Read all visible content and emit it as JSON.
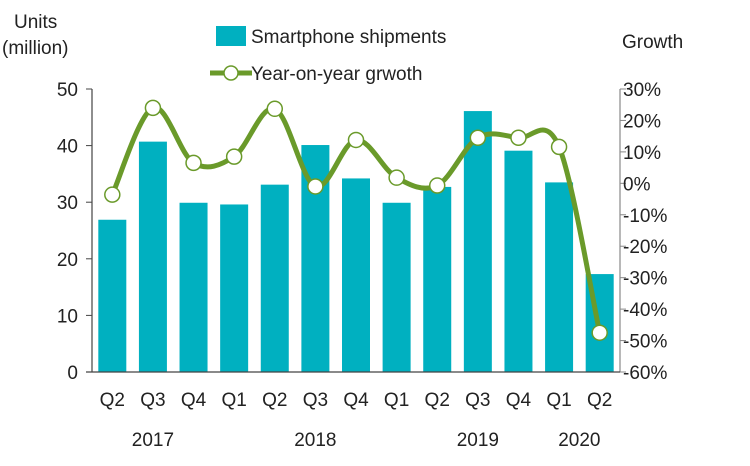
{
  "chart_data": {
    "type": "bar+line",
    "left_axis_label": [
      "Units",
      "(million)"
    ],
    "right_axis_label": "Growth",
    "categories": [
      "Q2",
      "Q3",
      "Q4",
      "Q1",
      "Q2",
      "Q3",
      "Q4",
      "Q1",
      "Q2",
      "Q3",
      "Q4",
      "Q1",
      "Q2"
    ],
    "years": [
      {
        "label": "2017",
        "index": 1
      },
      {
        "label": "2018",
        "index": 5
      },
      {
        "label": "2019",
        "index": 9
      },
      {
        "label": "2020",
        "index": 11.5
      }
    ],
    "left_ylim": [
      0,
      50
    ],
    "left_ticks": [
      "0",
      "10",
      "20",
      "30",
      "40",
      "50"
    ],
    "right_ylim": [
      -60,
      30
    ],
    "right_ticks": [
      "-60%",
      "-50%",
      "-40%",
      "-30%",
      "-20%",
      "-10%",
      "0%",
      "10%",
      "20%",
      "30%"
    ],
    "grid": false,
    "legend_placement": "top",
    "series": [
      {
        "name": "Smartphone shipments",
        "type": "bar",
        "axis": "left",
        "color": "#00b0c0",
        "values": [
          26.9,
          40.7,
          29.9,
          29.6,
          33.1,
          40.1,
          34.2,
          29.9,
          32.7,
          46.1,
          39.1,
          33.5,
          17.3
        ]
      },
      {
        "name": "Year-on-year grwoth",
        "type": "line",
        "axis": "right",
        "color": "#6a9a2a",
        "values": [
          -3.6,
          24.0,
          6.5,
          8.5,
          23.7,
          -1.0,
          13.8,
          1.8,
          -0.7,
          14.5,
          14.5,
          11.6,
          -47.5
        ]
      }
    ]
  }
}
